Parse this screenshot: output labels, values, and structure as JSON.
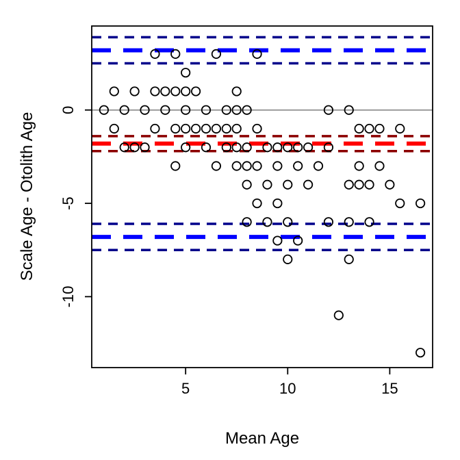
{
  "chart_data": {
    "type": "scatter",
    "title": "",
    "xlabel": "Mean Age",
    "ylabel": "Scale Age - Otolith Age",
    "xlim": [
      0.4,
      17.1
    ],
    "ylim": [
      -13.8,
      4.5
    ],
    "x_ticks": [
      5,
      10,
      15
    ],
    "y_ticks": [
      -10,
      -5,
      0
    ],
    "tick_labels_x": [
      "5",
      "10",
      "15"
    ],
    "tick_labels_y": [
      "-10",
      "-5",
      "0"
    ],
    "grid": false,
    "legend": "none",
    "reference_line": {
      "y": 0,
      "color": "#999999"
    },
    "agreement_lines": {
      "mean_bias": {
        "y": -1.8,
        "ci": [
          -1.4,
          -2.2
        ],
        "color": "#ff0000",
        "ci_color": "#8b0000"
      },
      "upper_limit": {
        "y": 3.2,
        "ci": [
          3.9,
          2.5
        ],
        "color": "#0000ff",
        "ci_color": "#00008b"
      },
      "lower_limit": {
        "y": -6.8,
        "ci": [
          -6.1,
          -7.5
        ],
        "color": "#0000ff",
        "ci_color": "#00008b"
      }
    },
    "points": [
      [
        1,
        0
      ],
      [
        1.5,
        1
      ],
      [
        1.5,
        -1
      ],
      [
        2,
        0
      ],
      [
        2,
        -2
      ],
      [
        2.5,
        1
      ],
      [
        2.5,
        -2
      ],
      [
        3,
        0
      ],
      [
        3,
        -2
      ],
      [
        3.5,
        3
      ],
      [
        3.5,
        1
      ],
      [
        3.5,
        -1
      ],
      [
        4,
        0
      ],
      [
        4,
        1
      ],
      [
        4.5,
        3
      ],
      [
        4.5,
        1
      ],
      [
        4.5,
        -1
      ],
      [
        4.5,
        -3
      ],
      [
        5,
        2
      ],
      [
        5,
        1
      ],
      [
        5,
        0
      ],
      [
        5,
        -1
      ],
      [
        5,
        -2
      ],
      [
        5.5,
        1
      ],
      [
        5.5,
        -1
      ],
      [
        6,
        0
      ],
      [
        6,
        -1
      ],
      [
        6,
        -2
      ],
      [
        6.5,
        3
      ],
      [
        6.5,
        -1
      ],
      [
        6.5,
        -3
      ],
      [
        7,
        0
      ],
      [
        7,
        -1
      ],
      [
        7,
        -2
      ],
      [
        7.5,
        1
      ],
      [
        7.5,
        0
      ],
      [
        7.5,
        -1
      ],
      [
        7.5,
        -2
      ],
      [
        7.5,
        -3
      ],
      [
        8,
        0
      ],
      [
        8,
        -2
      ],
      [
        8,
        -3
      ],
      [
        8,
        -4
      ],
      [
        8,
        -6
      ],
      [
        8.5,
        3
      ],
      [
        8.5,
        -1
      ],
      [
        8.5,
        -3
      ],
      [
        8.5,
        -5
      ],
      [
        9,
        -2
      ],
      [
        9,
        -4
      ],
      [
        9,
        -6
      ],
      [
        9.5,
        -2
      ],
      [
        9.5,
        -3
      ],
      [
        9.5,
        -5
      ],
      [
        9.5,
        -7
      ],
      [
        10,
        -2
      ],
      [
        10,
        -4
      ],
      [
        10,
        -6
      ],
      [
        10,
        -8
      ],
      [
        10.5,
        -2
      ],
      [
        10.5,
        -3
      ],
      [
        10.5,
        -7
      ],
      [
        11,
        -2
      ],
      [
        11,
        -4
      ],
      [
        11.5,
        -3
      ],
      [
        12,
        0
      ],
      [
        12,
        -2
      ],
      [
        12,
        -6
      ],
      [
        12.5,
        -11
      ],
      [
        13,
        0
      ],
      [
        13,
        -4
      ],
      [
        13,
        -6
      ],
      [
        13,
        -8
      ],
      [
        13.5,
        -1
      ],
      [
        13.5,
        -3
      ],
      [
        13.5,
        -4
      ],
      [
        14,
        -1
      ],
      [
        14,
        -4
      ],
      [
        14,
        -6
      ],
      [
        14.5,
        -1
      ],
      [
        14.5,
        -3
      ],
      [
        15,
        -4
      ],
      [
        15.5,
        -1
      ],
      [
        15.5,
        -5
      ],
      [
        16.5,
        -5
      ],
      [
        16.5,
        -13
      ]
    ]
  }
}
